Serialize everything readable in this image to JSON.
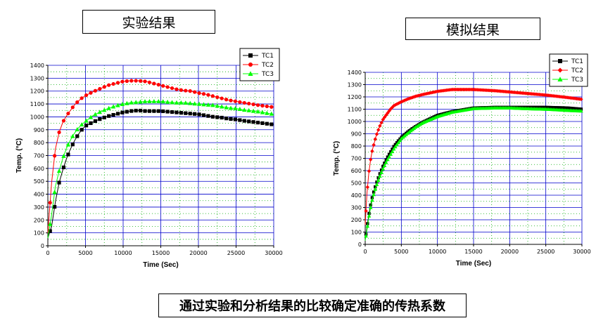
{
  "titles": {
    "left": "实验结果",
    "right": "模拟结果"
  },
  "caption": "通过实验和分析结果的比较确定准确的传热系数",
  "colors": {
    "TC1": "#000000",
    "TC2": "#ff0000",
    "TC3": "#00ff00",
    "grid_major": "#0000cc",
    "grid_minor": "#00aa00"
  },
  "chart_data": [
    {
      "type": "line",
      "xlabel": "Time (Sec)",
      "ylabel": "Temp. (°C)",
      "xlim": [
        0,
        30000
      ],
      "ylim": [
        0,
        1400
      ],
      "xticks": [
        0,
        5000,
        10000,
        15000,
        20000,
        25000,
        30000
      ],
      "yticks": [
        0,
        100,
        200,
        300,
        400,
        500,
        600,
        700,
        800,
        900,
        1000,
        1100,
        1200,
        1300,
        1400
      ],
      "grid": true,
      "legend": "top-right",
      "markers": true,
      "series": [
        {
          "name": "TC1",
          "marker": "square",
          "x": [
            0,
            500,
            1000,
            1500,
            2000,
            2500,
            3000,
            3500,
            4000,
            4500,
            5000,
            6000,
            7000,
            8000,
            9000,
            10000,
            11000,
            12000,
            13000,
            14000,
            15000,
            16000,
            17000,
            18000,
            19000,
            20000,
            21000,
            22000,
            23000,
            24000,
            25000,
            26000,
            28000,
            30000
          ],
          "y": [
            60,
            150,
            340,
            490,
            590,
            680,
            750,
            810,
            860,
            900,
            930,
            960,
            985,
            1005,
            1020,
            1035,
            1045,
            1050,
            1045,
            1045,
            1045,
            1040,
            1035,
            1030,
            1025,
            1020,
            1010,
            1000,
            995,
            985,
            980,
            970,
            955,
            940
          ]
        },
        {
          "name": "TC2",
          "marker": "circle",
          "x": [
            0,
            500,
            1000,
            1500,
            2000,
            2500,
            3000,
            3500,
            4000,
            4500,
            5000,
            6000,
            7000,
            8000,
            9000,
            10000,
            11000,
            12000,
            13000,
            14000,
            15000,
            16000,
            17000,
            18000,
            19000,
            20000,
            21000,
            22000,
            23000,
            24000,
            25000,
            26000,
            28000,
            30000
          ],
          "y": [
            100,
            490,
            750,
            880,
            960,
            1010,
            1050,
            1090,
            1120,
            1145,
            1165,
            1195,
            1220,
            1245,
            1260,
            1275,
            1280,
            1280,
            1275,
            1260,
            1245,
            1230,
            1215,
            1205,
            1200,
            1185,
            1175,
            1160,
            1145,
            1130,
            1120,
            1110,
            1090,
            1075
          ]
        },
        {
          "name": "TC3",
          "marker": "triangle",
          "x": [
            0,
            500,
            1000,
            1500,
            2000,
            2500,
            3000,
            3500,
            4000,
            4500,
            5000,
            6000,
            7000,
            8000,
            9000,
            10000,
            11000,
            12000,
            13000,
            14000,
            15000,
            16000,
            17000,
            18000,
            19000,
            20000,
            21000,
            22000,
            23000,
            24000,
            25000,
            26000,
            28000,
            30000
          ],
          "y": [
            60,
            240,
            460,
            580,
            680,
            760,
            820,
            870,
            910,
            940,
            965,
            1010,
            1040,
            1065,
            1085,
            1100,
            1110,
            1115,
            1120,
            1120,
            1120,
            1115,
            1110,
            1110,
            1105,
            1100,
            1095,
            1090,
            1080,
            1070,
            1065,
            1055,
            1040,
            1020
          ]
        }
      ]
    },
    {
      "type": "line",
      "xlabel": "Time (Sec)",
      "ylabel": "Temp. (°C)",
      "xlim": [
        0,
        30000
      ],
      "ylim": [
        0,
        1400
      ],
      "xticks": [
        0,
        5000,
        10000,
        15000,
        20000,
        25000,
        30000
      ],
      "yticks": [
        0,
        100,
        200,
        300,
        400,
        500,
        600,
        700,
        800,
        900,
        1000,
        1100,
        1200,
        1300,
        1400
      ],
      "grid": true,
      "legend": "top-right",
      "markers": true,
      "series": [
        {
          "name": "TC1",
          "marker": "square",
          "x": [
            0,
            250,
            500,
            750,
            1000,
            1500,
            2000,
            2500,
            3000,
            3500,
            4000,
            5000,
            6000,
            7000,
            8000,
            10000,
            12000,
            15000,
            18000,
            20000,
            22000,
            25000,
            28000,
            30000
          ],
          "y": [
            40,
            140,
            240,
            320,
            390,
            490,
            570,
            640,
            700,
            750,
            800,
            870,
            920,
            960,
            995,
            1050,
            1080,
            1110,
            1115,
            1115,
            1115,
            1115,
            1110,
            1100
          ]
        },
        {
          "name": "TC2",
          "marker": "diamond",
          "x": [
            0,
            250,
            500,
            750,
            1000,
            1500,
            2000,
            2500,
            3000,
            3500,
            4000,
            5000,
            6000,
            7000,
            8000,
            10000,
            12000,
            15000,
            18000,
            20000,
            22000,
            25000,
            28000,
            30000
          ],
          "y": [
            160,
            420,
            580,
            690,
            770,
            880,
            960,
            1020,
            1060,
            1100,
            1130,
            1160,
            1185,
            1205,
            1220,
            1245,
            1260,
            1260,
            1250,
            1240,
            1230,
            1215,
            1195,
            1180
          ]
        },
        {
          "name": "TC3",
          "marker": "triangle",
          "x": [
            0,
            250,
            500,
            750,
            1000,
            1500,
            2000,
            2500,
            3000,
            3500,
            4000,
            5000,
            6000,
            7000,
            8000,
            10000,
            12000,
            15000,
            18000,
            20000,
            22000,
            25000,
            28000,
            30000
          ],
          "y": [
            30,
            120,
            220,
            300,
            370,
            470,
            550,
            620,
            680,
            730,
            780,
            860,
            910,
            955,
            990,
            1040,
            1075,
            1105,
            1110,
            1110,
            1105,
            1100,
            1090,
            1085
          ]
        }
      ]
    }
  ]
}
